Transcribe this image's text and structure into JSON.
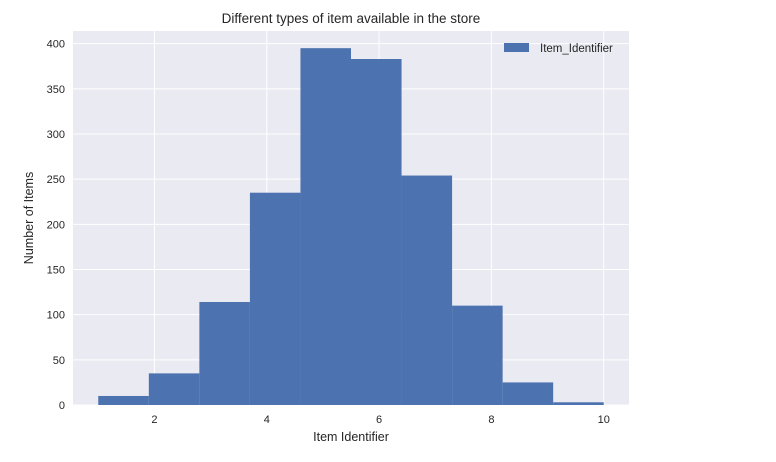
{
  "chart_data": {
    "type": "bar",
    "title": "Different types of item available in the store",
    "xlabel": "Item Identifier",
    "ylabel": "Number of Items",
    "bins": [
      {
        "start": 1.0,
        "end": 1.9,
        "count": 10
      },
      {
        "start": 1.9,
        "end": 2.8,
        "count": 35
      },
      {
        "start": 2.8,
        "end": 3.7,
        "count": 114
      },
      {
        "start": 3.7,
        "end": 4.6,
        "count": 235
      },
      {
        "start": 4.6,
        "end": 5.5,
        "count": 395
      },
      {
        "start": 5.5,
        "end": 6.4,
        "count": 383
      },
      {
        "start": 6.4,
        "end": 7.3,
        "count": 254
      },
      {
        "start": 7.3,
        "end": 8.2,
        "count": 110
      },
      {
        "start": 8.2,
        "end": 9.1,
        "count": 25
      },
      {
        "start": 9.1,
        "end": 10.0,
        "count": 3
      }
    ],
    "xlim": [
      0.55,
      10.45
    ],
    "ylim": [
      0,
      414
    ],
    "xticks": [
      2,
      4,
      6,
      8,
      10
    ],
    "yticks": [
      0,
      50,
      100,
      150,
      200,
      250,
      300,
      350,
      400
    ],
    "grid": true,
    "legend": {
      "label": "Item_Identifier",
      "position": "top-right"
    },
    "colors": {
      "bar": "#4c72b0",
      "plot_bg": "#eaeaf2",
      "grid": "#ffffff"
    }
  }
}
